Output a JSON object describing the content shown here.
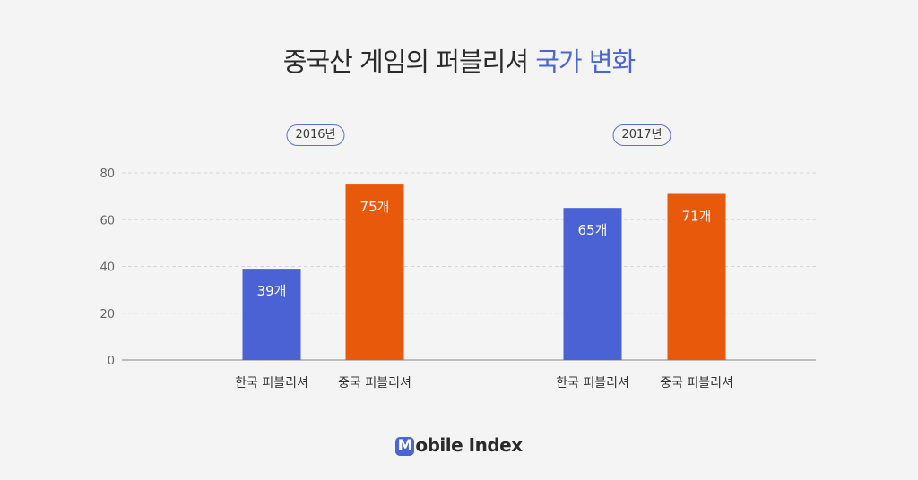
{
  "title": {
    "main": "중국산 게임의 퍼블리셔",
    "highlight": "국가 변화"
  },
  "logo": {
    "mark": "M",
    "rest": "obile Index"
  },
  "colors": {
    "korea": "#4a62d4",
    "china": "#e8590c",
    "accent": "#4a66d6"
  },
  "chart_data": {
    "type": "bar",
    "groups": [
      "2016년",
      "2017년"
    ],
    "categories": [
      "한국 퍼블리셔",
      "중국 퍼블리셔"
    ],
    "series": [
      {
        "name": "2016년",
        "values": [
          39,
          75
        ],
        "labels": [
          "39개",
          "75개"
        ]
      },
      {
        "name": "2017년",
        "values": [
          65,
          71
        ],
        "labels": [
          "65개",
          "71개"
        ]
      }
    ],
    "yticks": [
      "0",
      "20",
      "40",
      "60",
      "80"
    ],
    "ylim": [
      0,
      80
    ],
    "grid": true,
    "legend": "none"
  }
}
